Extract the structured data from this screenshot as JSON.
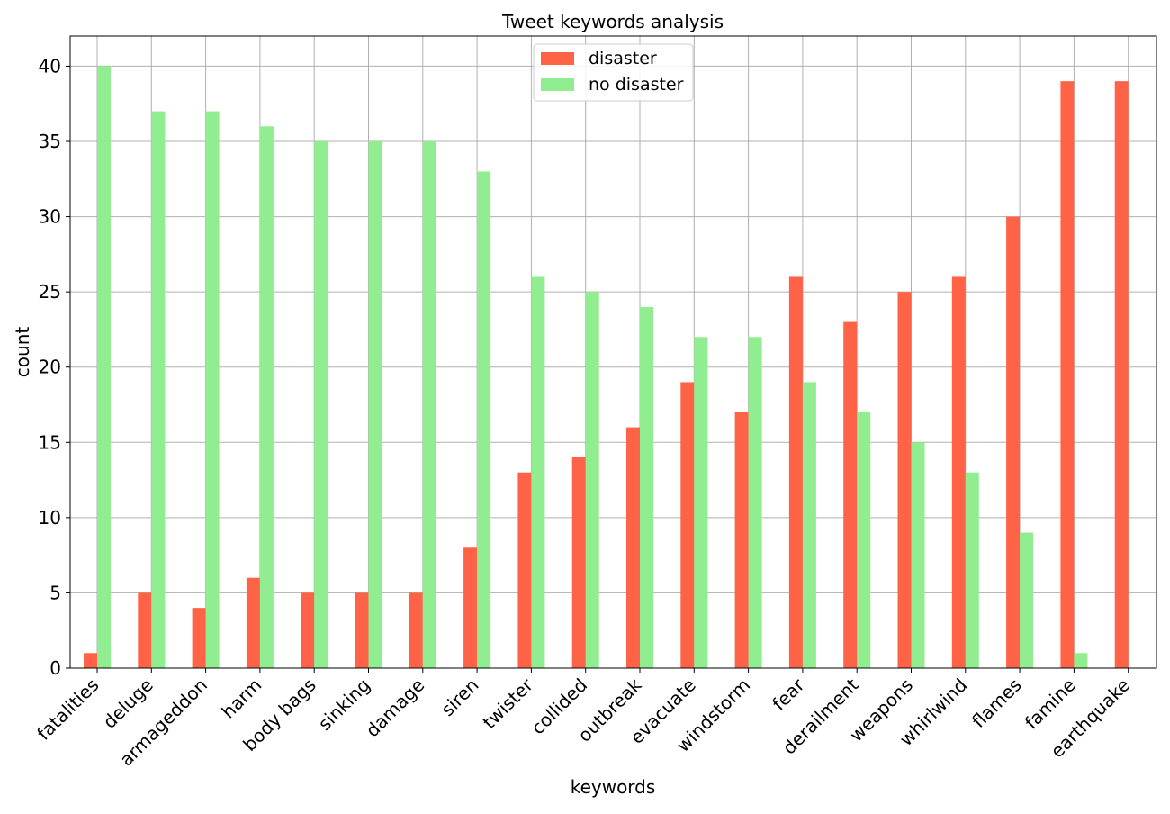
{
  "chart_data": {
    "type": "bar",
    "title": "Tweet keywords analysis",
    "xlabel": "keywords",
    "ylabel": "count",
    "ylim": [
      0,
      42
    ],
    "yticks": [
      0,
      5,
      10,
      15,
      20,
      25,
      30,
      35,
      40
    ],
    "grid": true,
    "legend_position": "top-center",
    "categories": [
      "fatalities",
      "deluge",
      "armageddon",
      "harm",
      "body bags",
      "sinking",
      "damage",
      "siren",
      "twister",
      "collided",
      "outbreak",
      "evacuate",
      "windstorm",
      "fear",
      "derailment",
      "weapons",
      "whirlwind",
      "flames",
      "famine",
      "earthquake"
    ],
    "series": [
      {
        "name": "disaster",
        "color": "#ff6347",
        "values": [
          1,
          5,
          4,
          6,
          5,
          5,
          5,
          8,
          13,
          14,
          16,
          19,
          17,
          26,
          23,
          25,
          26,
          30,
          39,
          39
        ]
      },
      {
        "name": "no disaster",
        "color": "#90ee90",
        "values": [
          40,
          37,
          37,
          36,
          35,
          35,
          35,
          33,
          26,
          25,
          24,
          22,
          22,
          19,
          17,
          15,
          13,
          9,
          1,
          0
        ]
      }
    ]
  }
}
